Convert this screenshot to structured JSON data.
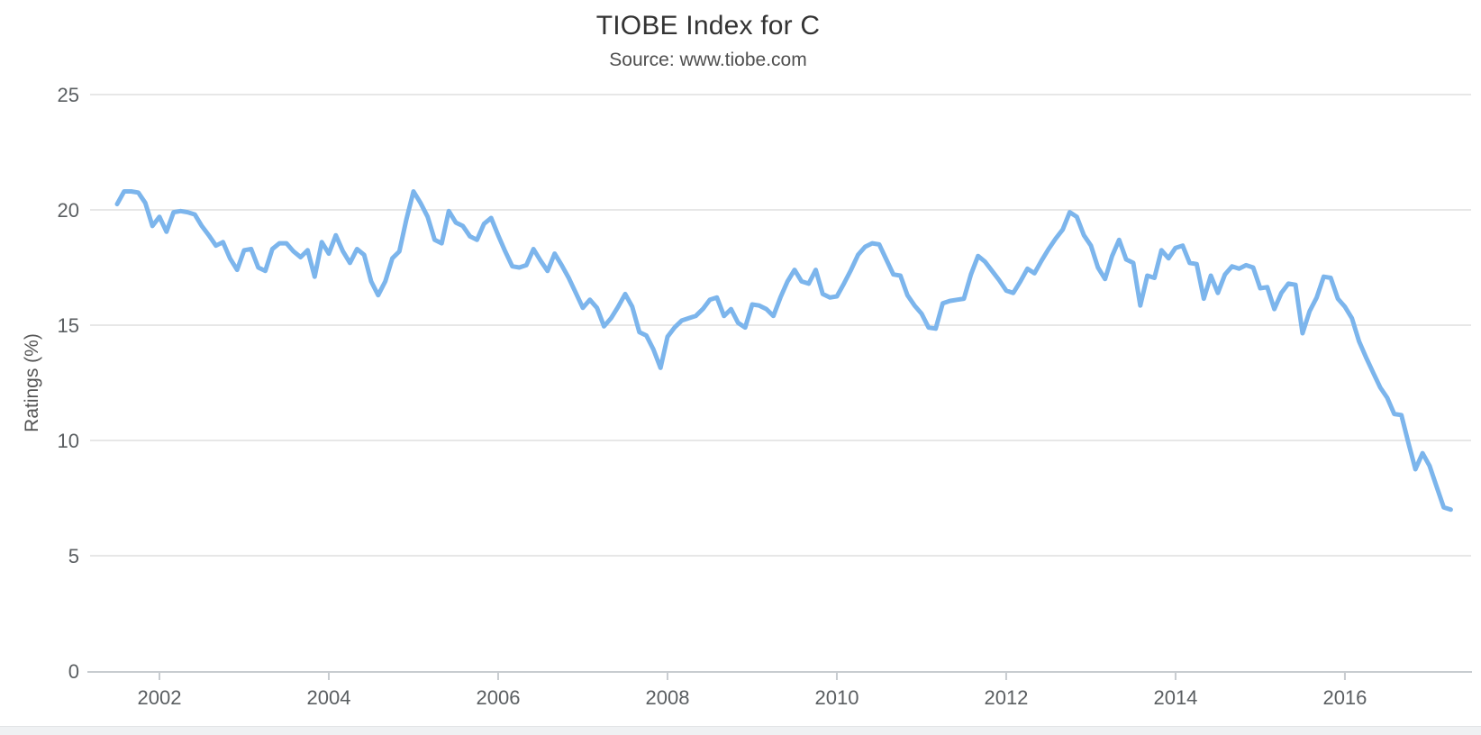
{
  "chart_data": {
    "type": "line",
    "title": "TIOBE Index for C",
    "subtitle": "Source: www.tiobe.com",
    "xlabel": "",
    "ylabel": "Ratings (%)",
    "xlim": [
      2001.181,
      2017.49
    ],
    "ylim": [
      0,
      25
    ],
    "yticks": [
      0,
      5,
      10,
      15,
      20,
      25
    ],
    "xticks": [
      2002,
      2004,
      2006,
      2008,
      2010,
      2012,
      2014,
      2016
    ],
    "grid": "horizontal",
    "legend": "none",
    "series": [
      {
        "name": "C",
        "color": "#7cb5ec",
        "points": [
          [
            2001.5,
            20.25
          ],
          [
            2001.583,
            20.8
          ],
          [
            2001.667,
            20.8
          ],
          [
            2001.75,
            20.75
          ],
          [
            2001.833,
            20.3
          ],
          [
            2001.917,
            19.3
          ],
          [
            2002,
            19.7
          ],
          [
            2002.083,
            19.05
          ],
          [
            2002.167,
            19.9
          ],
          [
            2002.25,
            19.95
          ],
          [
            2002.333,
            19.9
          ],
          [
            2002.417,
            19.8
          ],
          [
            2002.5,
            19.3
          ],
          [
            2002.583,
            18.9
          ],
          [
            2002.667,
            18.45
          ],
          [
            2002.75,
            18.6
          ],
          [
            2002.833,
            17.9
          ],
          [
            2002.917,
            17.4
          ],
          [
            2003,
            18.25
          ],
          [
            2003.083,
            18.3
          ],
          [
            2003.167,
            17.5
          ],
          [
            2003.25,
            17.35
          ],
          [
            2003.333,
            18.3
          ],
          [
            2003.417,
            18.55
          ],
          [
            2003.5,
            18.55
          ],
          [
            2003.583,
            18.2
          ],
          [
            2003.667,
            17.95
          ],
          [
            2003.75,
            18.25
          ],
          [
            2003.833,
            17.1
          ],
          [
            2003.917,
            18.6
          ],
          [
            2004,
            18.1
          ],
          [
            2004.083,
            18.9
          ],
          [
            2004.167,
            18.2
          ],
          [
            2004.25,
            17.7
          ],
          [
            2004.333,
            18.3
          ],
          [
            2004.417,
            18.05
          ],
          [
            2004.5,
            16.9
          ],
          [
            2004.583,
            16.3
          ],
          [
            2004.667,
            16.9
          ],
          [
            2004.75,
            17.9
          ],
          [
            2004.833,
            18.2
          ],
          [
            2004.917,
            19.6
          ],
          [
            2005,
            20.8
          ],
          [
            2005.083,
            20.3
          ],
          [
            2005.167,
            19.7
          ],
          [
            2005.25,
            18.7
          ],
          [
            2005.333,
            18.55
          ],
          [
            2005.417,
            19.95
          ],
          [
            2005.5,
            19.45
          ],
          [
            2005.583,
            19.3
          ],
          [
            2005.667,
            18.85
          ],
          [
            2005.75,
            18.7
          ],
          [
            2005.833,
            19.4
          ],
          [
            2005.917,
            19.65
          ],
          [
            2006,
            18.9
          ],
          [
            2006.083,
            18.2
          ],
          [
            2006.167,
            17.55
          ],
          [
            2006.25,
            17.5
          ],
          [
            2006.333,
            17.6
          ],
          [
            2006.417,
            18.3
          ],
          [
            2006.5,
            17.8
          ],
          [
            2006.583,
            17.35
          ],
          [
            2006.667,
            18.1
          ],
          [
            2006.75,
            17.6
          ],
          [
            2006.833,
            17.05
          ],
          [
            2006.917,
            16.4
          ],
          [
            2007,
            15.75
          ],
          [
            2007.083,
            16.1
          ],
          [
            2007.167,
            15.75
          ],
          [
            2007.25,
            14.95
          ],
          [
            2007.333,
            15.3
          ],
          [
            2007.417,
            15.8
          ],
          [
            2007.5,
            16.35
          ],
          [
            2007.583,
            15.8
          ],
          [
            2007.667,
            14.7
          ],
          [
            2007.75,
            14.55
          ],
          [
            2007.833,
            13.95
          ],
          [
            2007.917,
            13.15
          ],
          [
            2008,
            14.5
          ],
          [
            2008.083,
            14.9
          ],
          [
            2008.167,
            15.2
          ],
          [
            2008.25,
            15.3
          ],
          [
            2008.333,
            15.4
          ],
          [
            2008.417,
            15.7
          ],
          [
            2008.5,
            16.1
          ],
          [
            2008.583,
            16.2
          ],
          [
            2008.667,
            15.4
          ],
          [
            2008.75,
            15.7
          ],
          [
            2008.833,
            15.1
          ],
          [
            2008.917,
            14.9
          ],
          [
            2009,
            15.9
          ],
          [
            2009.083,
            15.85
          ],
          [
            2009.167,
            15.7
          ],
          [
            2009.25,
            15.4
          ],
          [
            2009.333,
            16.2
          ],
          [
            2009.417,
            16.9
          ],
          [
            2009.5,
            17.4
          ],
          [
            2009.583,
            16.9
          ],
          [
            2009.667,
            16.8
          ],
          [
            2009.75,
            17.4
          ],
          [
            2009.833,
            16.35
          ],
          [
            2009.917,
            16.2
          ],
          [
            2010,
            16.25
          ],
          [
            2010.083,
            16.8
          ],
          [
            2010.167,
            17.4
          ],
          [
            2010.25,
            18.05
          ],
          [
            2010.333,
            18.4
          ],
          [
            2010.417,
            18.55
          ],
          [
            2010.5,
            18.5
          ],
          [
            2010.583,
            17.85
          ],
          [
            2010.667,
            17.2
          ],
          [
            2010.75,
            17.15
          ],
          [
            2010.833,
            16.3
          ],
          [
            2010.917,
            15.85
          ],
          [
            2011,
            15.5
          ],
          [
            2011.083,
            14.9
          ],
          [
            2011.167,
            14.85
          ],
          [
            2011.25,
            15.95
          ],
          [
            2011.333,
            16.05
          ],
          [
            2011.417,
            16.1
          ],
          [
            2011.5,
            16.15
          ],
          [
            2011.583,
            17.2
          ],
          [
            2011.667,
            18.0
          ],
          [
            2011.75,
            17.75
          ],
          [
            2011.833,
            17.35
          ],
          [
            2011.917,
            16.95
          ],
          [
            2012,
            16.5
          ],
          [
            2012.083,
            16.4
          ],
          [
            2012.167,
            16.9
          ],
          [
            2012.25,
            17.45
          ],
          [
            2012.333,
            17.25
          ],
          [
            2012.417,
            17.8
          ],
          [
            2012.5,
            18.3
          ],
          [
            2012.583,
            18.75
          ],
          [
            2012.667,
            19.15
          ],
          [
            2012.75,
            19.9
          ],
          [
            2012.833,
            19.7
          ],
          [
            2012.917,
            18.9
          ],
          [
            2013,
            18.45
          ],
          [
            2013.083,
            17.5
          ],
          [
            2013.167,
            17.0
          ],
          [
            2013.25,
            18.0
          ],
          [
            2013.333,
            18.7
          ],
          [
            2013.417,
            17.85
          ],
          [
            2013.5,
            17.7
          ],
          [
            2013.583,
            15.85
          ],
          [
            2013.667,
            17.15
          ],
          [
            2013.75,
            17.05
          ],
          [
            2013.833,
            18.25
          ],
          [
            2013.917,
            17.9
          ],
          [
            2014,
            18.35
          ],
          [
            2014.083,
            18.45
          ],
          [
            2014.167,
            17.7
          ],
          [
            2014.25,
            17.65
          ],
          [
            2014.333,
            16.15
          ],
          [
            2014.417,
            17.15
          ],
          [
            2014.5,
            16.4
          ],
          [
            2014.583,
            17.2
          ],
          [
            2014.667,
            17.55
          ],
          [
            2014.75,
            17.45
          ],
          [
            2014.833,
            17.6
          ],
          [
            2014.917,
            17.5
          ],
          [
            2015,
            16.6
          ],
          [
            2015.083,
            16.65
          ],
          [
            2015.167,
            15.7
          ],
          [
            2015.25,
            16.4
          ],
          [
            2015.333,
            16.8
          ],
          [
            2015.417,
            16.75
          ],
          [
            2015.5,
            14.65
          ],
          [
            2015.583,
            15.6
          ],
          [
            2015.667,
            16.2
          ],
          [
            2015.75,
            17.1
          ],
          [
            2015.833,
            17.05
          ],
          [
            2015.917,
            16.15
          ],
          [
            2016,
            15.8
          ],
          [
            2016.083,
            15.3
          ],
          [
            2016.167,
            14.3
          ],
          [
            2016.25,
            13.6
          ],
          [
            2016.333,
            12.95
          ],
          [
            2016.417,
            12.3
          ],
          [
            2016.5,
            11.85
          ],
          [
            2016.583,
            11.15
          ],
          [
            2016.667,
            11.1
          ],
          [
            2016.75,
            9.9
          ],
          [
            2016.833,
            8.75
          ],
          [
            2016.917,
            9.45
          ],
          [
            2017,
            8.9
          ],
          [
            2017.083,
            8.0
          ],
          [
            2017.167,
            7.1
          ],
          [
            2017.25,
            7.0
          ]
        ]
      }
    ]
  },
  "colors": {
    "line": "#7cb5ec",
    "gridline": "#e7e7e7",
    "axis_line": "#c8ccd0",
    "tick_label": "#5a5e61",
    "title": "#333333",
    "subtitle": "#4f4f4f",
    "bottom_strip": "#eff1f3"
  }
}
